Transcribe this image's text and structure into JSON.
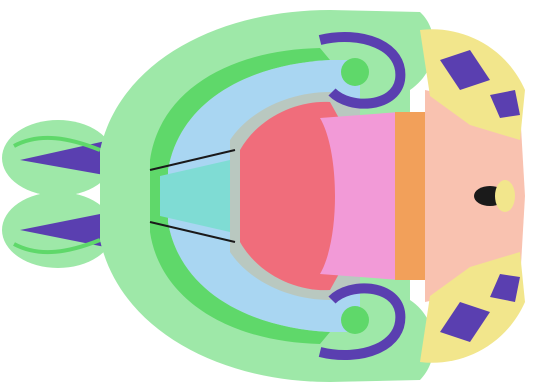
{
  "image": {
    "subject": "brain-atlas-section",
    "orientation": "horizontal",
    "colors": {
      "background": "#ffffff",
      "outer_shell": "#9ee8a8",
      "outer_shell_dark": "#7fd98f",
      "blue_region": "#a9d6f2",
      "green_band": "#5fd86a",
      "gray_region": "#b9c8c0",
      "red_region": "#f06d7b",
      "pink_region": "#f29ad7",
      "orange_region": "#f2a05a",
      "peach_region": "#f9c2b0",
      "yellow_region": "#f2e68c",
      "purple_region": "#5a3fb0",
      "teal_region": "#7fdcd4",
      "black_marks": "#1a1a1a"
    }
  }
}
